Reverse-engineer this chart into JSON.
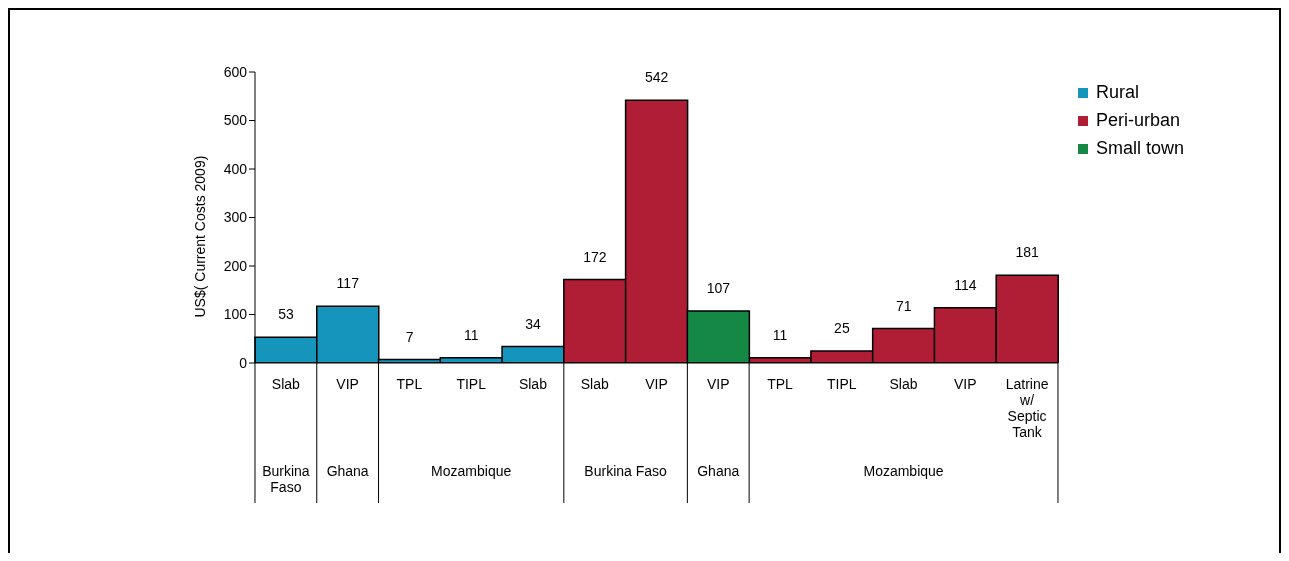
{
  "chart_data": {
    "type": "bar",
    "stacked": true,
    "ylabel": "US$( Current Costs 2009)",
    "categories": [
      "Slab",
      "VIP",
      "TPL",
      "TIPL",
      "Slab",
      "Slab",
      "VIP",
      "VIP",
      "TPL",
      "TIPL",
      "Slab",
      "VIP",
      "Latrine w/ Septic Tank"
    ],
    "series": [
      {
        "name": "Rural",
        "color": "#1595bb",
        "values": [
          53,
          117,
          7,
          11,
          34,
          null,
          null,
          null,
          null,
          null,
          null,
          null,
          null
        ]
      },
      {
        "name": "Peri-urban",
        "color": "#b01e35",
        "values": [
          null,
          null,
          null,
          null,
          null,
          172,
          542,
          null,
          11,
          25,
          71,
          114,
          181
        ]
      },
      {
        "name": "Small town",
        "color": "#158845",
        "values": [
          null,
          null,
          null,
          null,
          null,
          null,
          null,
          107,
          null,
          null,
          null,
          null,
          null
        ]
      }
    ],
    "ylim": [
      0,
      600
    ],
    "yticks": [
      0,
      100,
      200,
      300,
      400,
      500,
      600
    ],
    "grid": false,
    "data_labels": true,
    "legend": "top right",
    "annotations": [
      "Burkina Faso",
      "Ghana",
      "Mozambique",
      "Burkina Faso",
      "Ghana",
      "Mozambique"
    ]
  }
}
